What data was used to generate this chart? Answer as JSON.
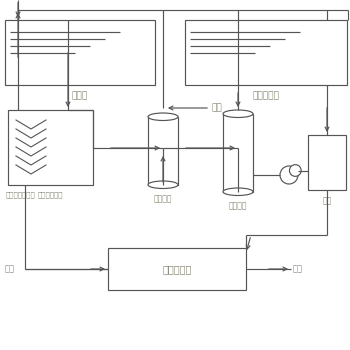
{
  "bg": "#ffffff",
  "lc": "#555555",
  "tc": "#888877",
  "lw": 0.85,
  "tank1_label": "酸洗槽",
  "tank2_label": "酸洗漂洗槽",
  "storage_label": "产工艺储水槽",
  "water_filter_label": "水过滤器",
  "acid_filter_label": "酸过滤器",
  "production_label": "生产",
  "acid_system_label": "酸纯化系统",
  "waste_label": "废液",
  "water_in_label": "进水",
  "left_partial": "加物"
}
